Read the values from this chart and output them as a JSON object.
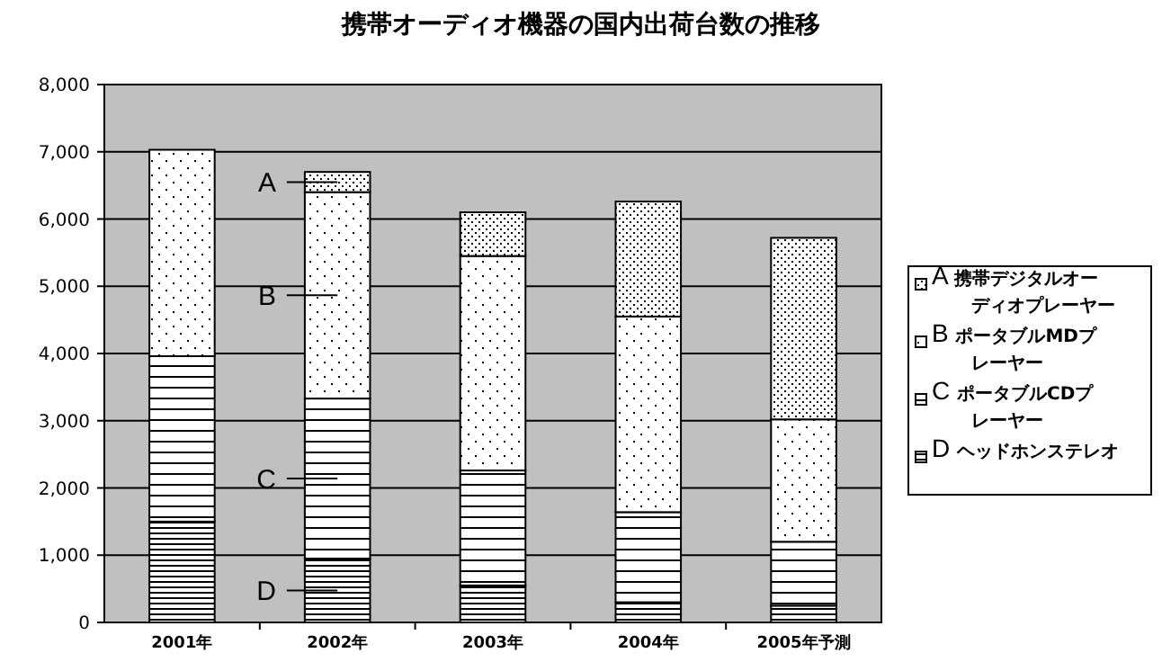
{
  "chart_data": {
    "type": "bar",
    "stacked": true,
    "title": "携帯オーディオ機器の国内出荷台数の推移",
    "categories": [
      "2001年",
      "2002年",
      "2003年",
      "2004年",
      "2005年予測"
    ],
    "series": [
      {
        "name": "D ヘッドホンステレオ",
        "color": "#ffffff",
        "values": [
          1500,
          950,
          550,
          300,
          250
        ]
      },
      {
        "name": "C ポータブルCDプレーヤー",
        "color": "#ffffff",
        "values": [
          2460,
          2380,
          1710,
          1340,
          950
        ]
      },
      {
        "name": "B ポータブルMDプレーヤー",
        "color": "#ffffff",
        "values": [
          3070,
          3070,
          3190,
          2910,
          1820
        ]
      },
      {
        "name": "A 携帯デジタルオーディオプレーヤー",
        "color": "#ffffff",
        "values": [
          null,
          300,
          650,
          1710,
          2700
        ]
      }
    ],
    "ylim": [
      0,
      8000
    ],
    "yticks": [
      0,
      {
        "value": 1000,
        "label": "1,000"
      },
      {
        "value": 2000,
        "label": "2,000"
      },
      {
        "value": 3000,
        "label": "3,000"
      },
      {
        "value": 4000,
        "label": "4,000"
      },
      {
        "value": 5000,
        "label": "5,000"
      },
      {
        "value": 6000,
        "label": "6,000"
      },
      {
        "value": 7000,
        "label": "7,000"
      },
      {
        "value": 8000,
        "label": "8,000"
      }
    ],
    "grid": "y",
    "legend": "right",
    "annotations": [
      "A",
      "B",
      "C",
      "D"
    ]
  }
}
